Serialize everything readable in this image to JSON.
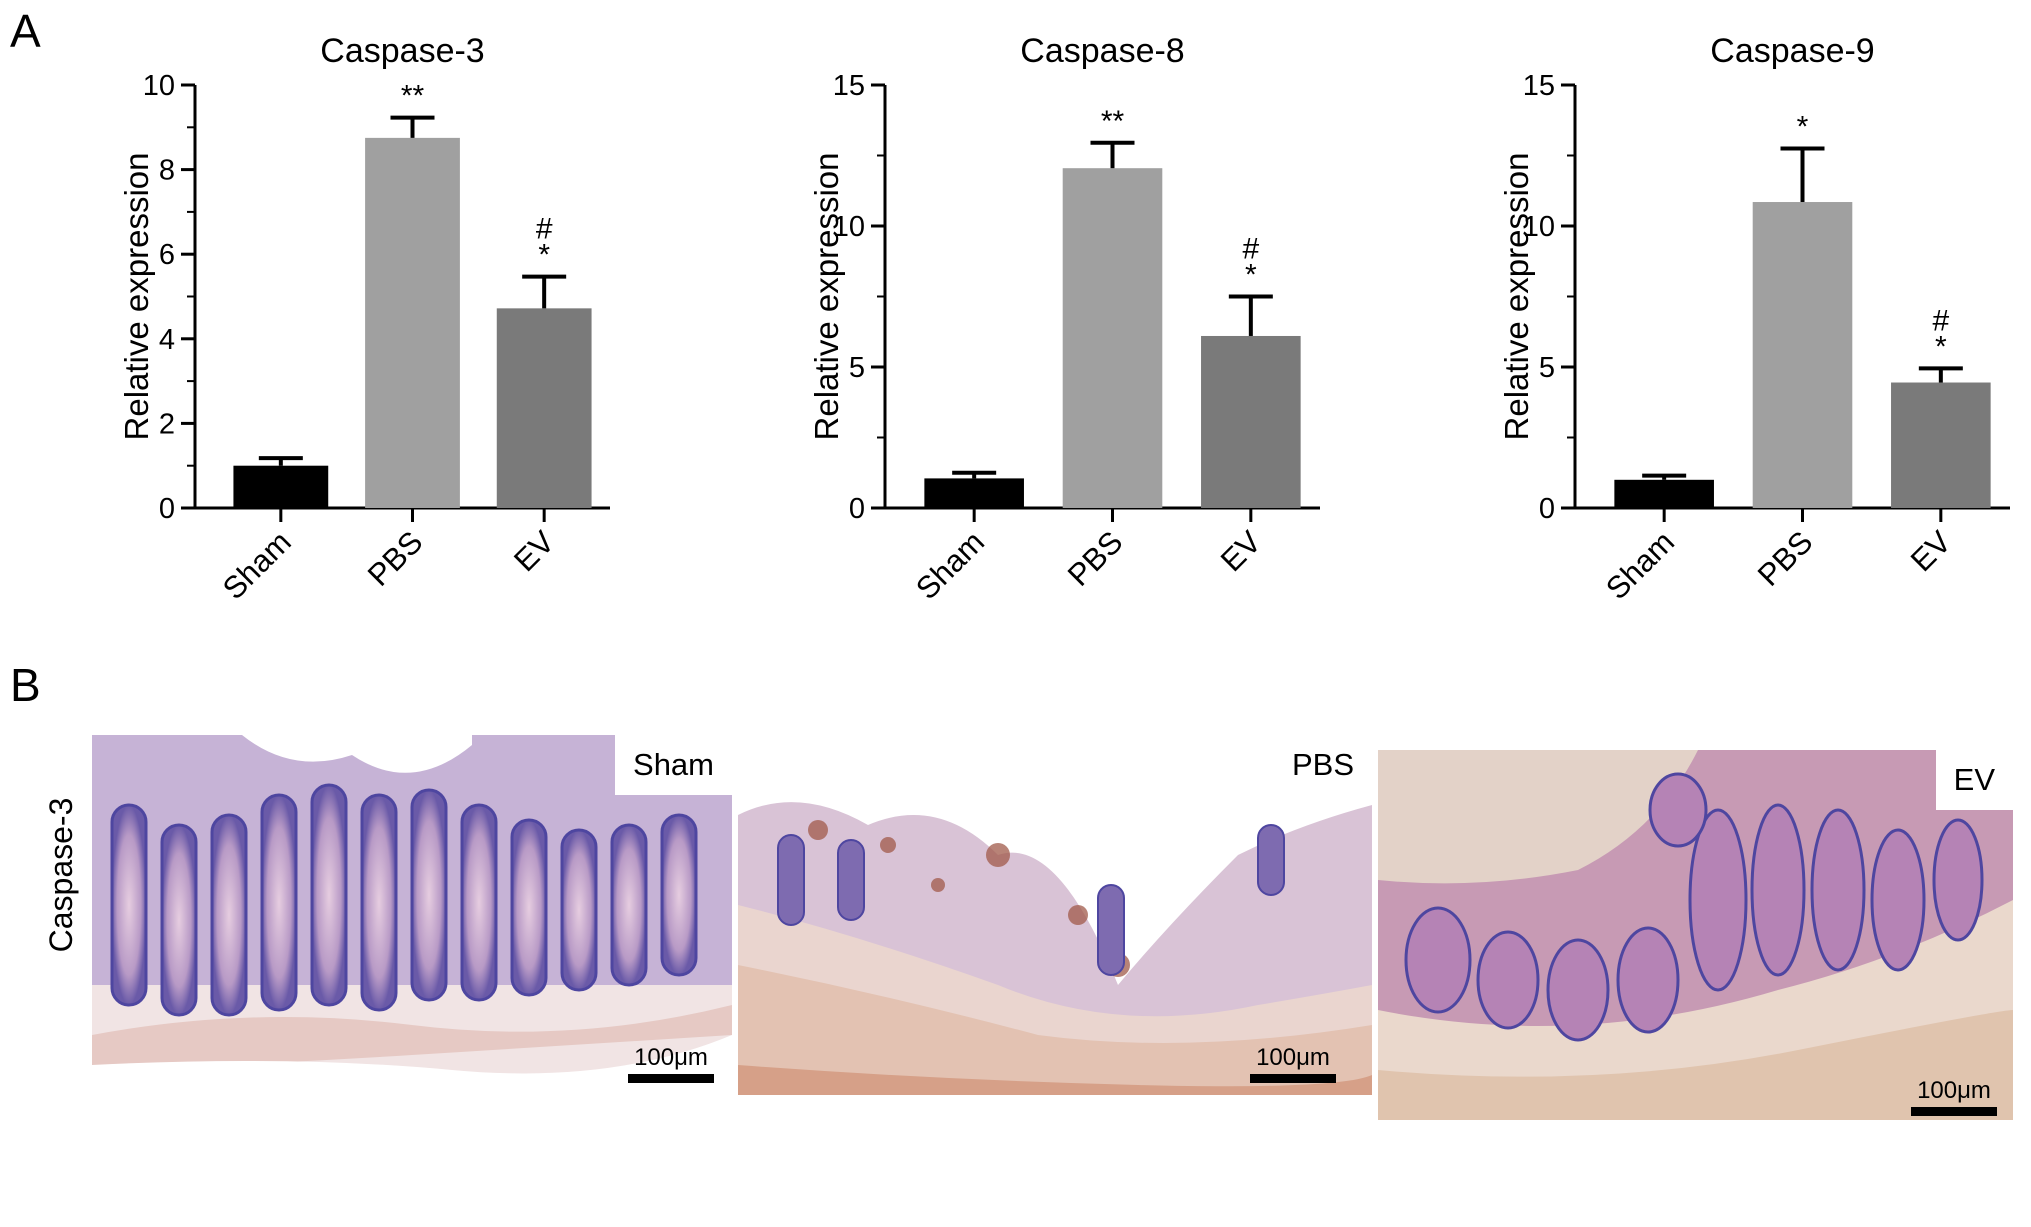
{
  "panels": {
    "a": "A",
    "b": "B"
  },
  "chart_data": [
    {
      "type": "bar",
      "title": "Caspase-3",
      "ylabel": "Relative expression",
      "xlabel": "",
      "categories": [
        "Sham",
        "PBS",
        "EV"
      ],
      "values": [
        1.0,
        8.75,
        4.72
      ],
      "errors": [
        0.18,
        0.48,
        0.75
      ],
      "significance": [
        [],
        [
          "**"
        ],
        [
          "#",
          "*"
        ]
      ],
      "ylim": [
        0,
        10
      ],
      "yticks": [
        0,
        2,
        4,
        6,
        8,
        10
      ],
      "colors": [
        "#000000",
        "#a0a0a0",
        "#7a7a7a"
      ],
      "grid": false,
      "legend": "none"
    },
    {
      "type": "bar",
      "title": "Caspase-8",
      "ylabel": "Relative expression",
      "xlabel": "",
      "categories": [
        "Sham",
        "PBS",
        "EV"
      ],
      "values": [
        1.05,
        12.05,
        6.1
      ],
      "errors": [
        0.2,
        0.9,
        1.4
      ],
      "significance": [
        [],
        [
          "**"
        ],
        [
          "#",
          "*"
        ]
      ],
      "ylim": [
        0,
        15
      ],
      "yticks": [
        0,
        5,
        10,
        15
      ],
      "colors": [
        "#000000",
        "#a0a0a0",
        "#7a7a7a"
      ],
      "grid": false,
      "legend": "none"
    },
    {
      "type": "bar",
      "title": "Caspase-9",
      "ylabel": "Relative expression",
      "xlabel": "",
      "categories": [
        "Sham",
        "PBS",
        "EV"
      ],
      "values": [
        1.0,
        10.85,
        4.45
      ],
      "errors": [
        0.15,
        1.9,
        0.5
      ],
      "significance": [
        [],
        [
          "*"
        ],
        [
          "#",
          "*"
        ]
      ],
      "ylim": [
        0,
        15
      ],
      "yticks": [
        0,
        5,
        10,
        15
      ],
      "colors": [
        "#000000",
        "#a0a0a0",
        "#7a7a7a"
      ],
      "grid": false,
      "legend": "none"
    }
  ],
  "micrographs": {
    "row_label": "Caspase-3",
    "images": [
      {
        "label": "Sham",
        "scale_bar": "100μm"
      },
      {
        "label": "PBS",
        "scale_bar": "100μm"
      },
      {
        "label": "EV",
        "scale_bar": "100μm"
      }
    ]
  }
}
